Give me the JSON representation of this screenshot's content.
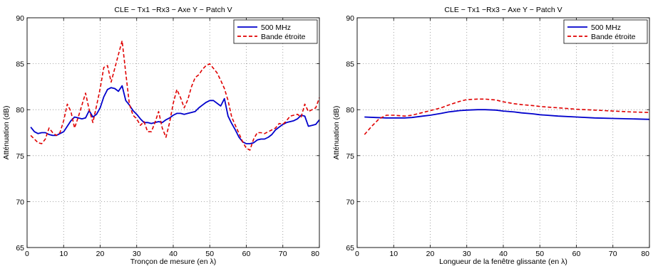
{
  "chart_data": [
    {
      "type": "line",
      "title": "CLE − Tx1 −Rx3 − Axe Y − Patch V",
      "xlabel": "Tronçon de mesure (en λ)",
      "ylabel": "Atténuation (dB)",
      "xlim": [
        0,
        80
      ],
      "ylim": [
        65,
        90
      ],
      "xticks": [
        0,
        10,
        20,
        30,
        40,
        50,
        60,
        70,
        80
      ],
      "yticks": [
        65,
        70,
        75,
        80,
        85,
        90
      ],
      "grid": true,
      "legend_position": "top-right",
      "series": [
        {
          "name": "500 MHz",
          "color": "#0000cc",
          "style": "solid",
          "x": [
            1,
            2,
            3,
            4,
            5,
            6,
            7,
            8,
            9,
            10,
            11,
            12,
            13,
            14,
            15,
            16,
            17,
            18,
            19,
            20,
            21,
            22,
            23,
            24,
            25,
            26,
            27,
            28,
            29,
            30,
            31,
            32,
            33,
            34,
            35,
            36,
            37,
            38,
            39,
            40,
            41,
            42,
            43,
            44,
            45,
            46,
            47,
            48,
            49,
            50,
            51,
            52,
            53,
            54,
            55,
            56,
            57,
            58,
            59,
            60,
            61,
            62,
            63,
            64,
            65,
            66,
            67,
            68,
            69,
            70,
            71,
            72,
            73,
            74,
            75,
            76,
            77,
            78,
            79,
            80
          ],
          "y": [
            78.1,
            77.6,
            77.4,
            77.5,
            77.5,
            77.3,
            77.2,
            77.2,
            77.4,
            77.6,
            78.2,
            78.8,
            79.2,
            79.1,
            79.0,
            79.1,
            79.9,
            79.2,
            79.5,
            80.2,
            81.4,
            82.2,
            82.4,
            82.3,
            82.0,
            82.6,
            81.0,
            80.5,
            79.9,
            79.5,
            79.0,
            78.6,
            78.6,
            78.5,
            78.6,
            78.7,
            78.6,
            78.9,
            79.1,
            79.4,
            79.6,
            79.6,
            79.5,
            79.6,
            79.7,
            79.8,
            80.2,
            80.5,
            80.8,
            81.0,
            81.0,
            80.7,
            80.4,
            81.2,
            79.3,
            78.5,
            77.8,
            77.0,
            76.5,
            76.3,
            76.3,
            76.4,
            76.7,
            76.8,
            76.8,
            77.0,
            77.3,
            77.8,
            78.1,
            78.4,
            78.6,
            78.7,
            78.8,
            79.0,
            79.4,
            79.3,
            78.2,
            78.3,
            78.4,
            78.9
          ]
        },
        {
          "name": "Bande étroite",
          "color": "#e00000",
          "style": "dashed",
          "x": [
            1,
            2,
            3,
            4,
            5,
            6,
            7,
            8,
            9,
            10,
            11,
            12,
            13,
            14,
            15,
            16,
            17,
            18,
            19,
            20,
            21,
            22,
            23,
            24,
            25,
            26,
            27,
            28,
            29,
            30,
            31,
            32,
            33,
            34,
            35,
            36,
            37,
            38,
            39,
            40,
            41,
            42,
            43,
            44,
            45,
            46,
            47,
            48,
            49,
            50,
            51,
            52,
            53,
            54,
            55,
            56,
            57,
            58,
            59,
            60,
            61,
            62,
            63,
            64,
            65,
            66,
            67,
            68,
            69,
            70,
            71,
            72,
            73,
            74,
            75,
            76,
            77,
            78,
            79,
            80
          ],
          "y": [
            77.2,
            76.8,
            76.4,
            76.3,
            76.8,
            78.0,
            77.5,
            77.2,
            77.5,
            78.8,
            80.6,
            79.8,
            78.0,
            79.2,
            80.5,
            81.8,
            80.0,
            78.6,
            80.4,
            82.3,
            84.6,
            84.8,
            83.0,
            84.5,
            86.0,
            87.5,
            84.0,
            80.6,
            79.4,
            79.0,
            78.3,
            78.7,
            77.6,
            77.6,
            78.6,
            79.8,
            78.0,
            77.0,
            78.6,
            80.7,
            82.2,
            81.3,
            80.2,
            81.1,
            82.5,
            83.5,
            83.8,
            84.4,
            84.8,
            85.0,
            84.5,
            84.0,
            83.2,
            82.3,
            81.0,
            79.2,
            78.3,
            77.4,
            76.5,
            75.8,
            75.6,
            76.8,
            77.5,
            77.5,
            77.4,
            77.6,
            77.8,
            78.0,
            78.5,
            78.4,
            78.8,
            79.3,
            79.4,
            79.5,
            79.2,
            80.6,
            79.8,
            80.0,
            80.2,
            81.3
          ]
        }
      ]
    },
    {
      "type": "line",
      "title": "CLE − Tx1 −Rx3 − Axe Y − Patch V",
      "xlabel": "Longueur de la fenêtre glissante (en λ)",
      "ylabel": "Atténuation (dB)",
      "xlim": [
        0,
        80
      ],
      "ylim": [
        65,
        90
      ],
      "xticks": [
        0,
        10,
        20,
        30,
        40,
        50,
        60,
        70,
        80
      ],
      "yticks": [
        65,
        70,
        75,
        80,
        85,
        90
      ],
      "grid": true,
      "legend_position": "top-right",
      "series": [
        {
          "name": "500 MHz",
          "color": "#0000cc",
          "style": "solid",
          "x": [
            2,
            5,
            8,
            10,
            13,
            15,
            18,
            20,
            23,
            25,
            28,
            30,
            33,
            35,
            38,
            40,
            43,
            45,
            48,
            50,
            55,
            60,
            65,
            70,
            75,
            80
          ],
          "y": [
            79.2,
            79.15,
            79.1,
            79.1,
            79.1,
            79.15,
            79.3,
            79.4,
            79.6,
            79.75,
            79.9,
            79.95,
            80.0,
            80.0,
            79.95,
            79.85,
            79.75,
            79.65,
            79.55,
            79.45,
            79.3,
            79.2,
            79.1,
            79.05,
            79.0,
            78.95
          ]
        },
        {
          "name": "Bande étroite",
          "color": "#e00000",
          "style": "dashed",
          "x": [
            2,
            4,
            6,
            8,
            10,
            13,
            15,
            18,
            20,
            23,
            25,
            28,
            30,
            33,
            35,
            38,
            40,
            43,
            45,
            48,
            50,
            55,
            60,
            65,
            70,
            75,
            80
          ],
          "y": [
            77.3,
            78.2,
            79.0,
            79.4,
            79.4,
            79.3,
            79.4,
            79.7,
            79.9,
            80.2,
            80.5,
            80.9,
            81.1,
            81.15,
            81.15,
            81.05,
            80.85,
            80.65,
            80.55,
            80.45,
            80.35,
            80.2,
            80.05,
            79.95,
            79.85,
            79.75,
            79.7
          ]
        }
      ]
    }
  ]
}
